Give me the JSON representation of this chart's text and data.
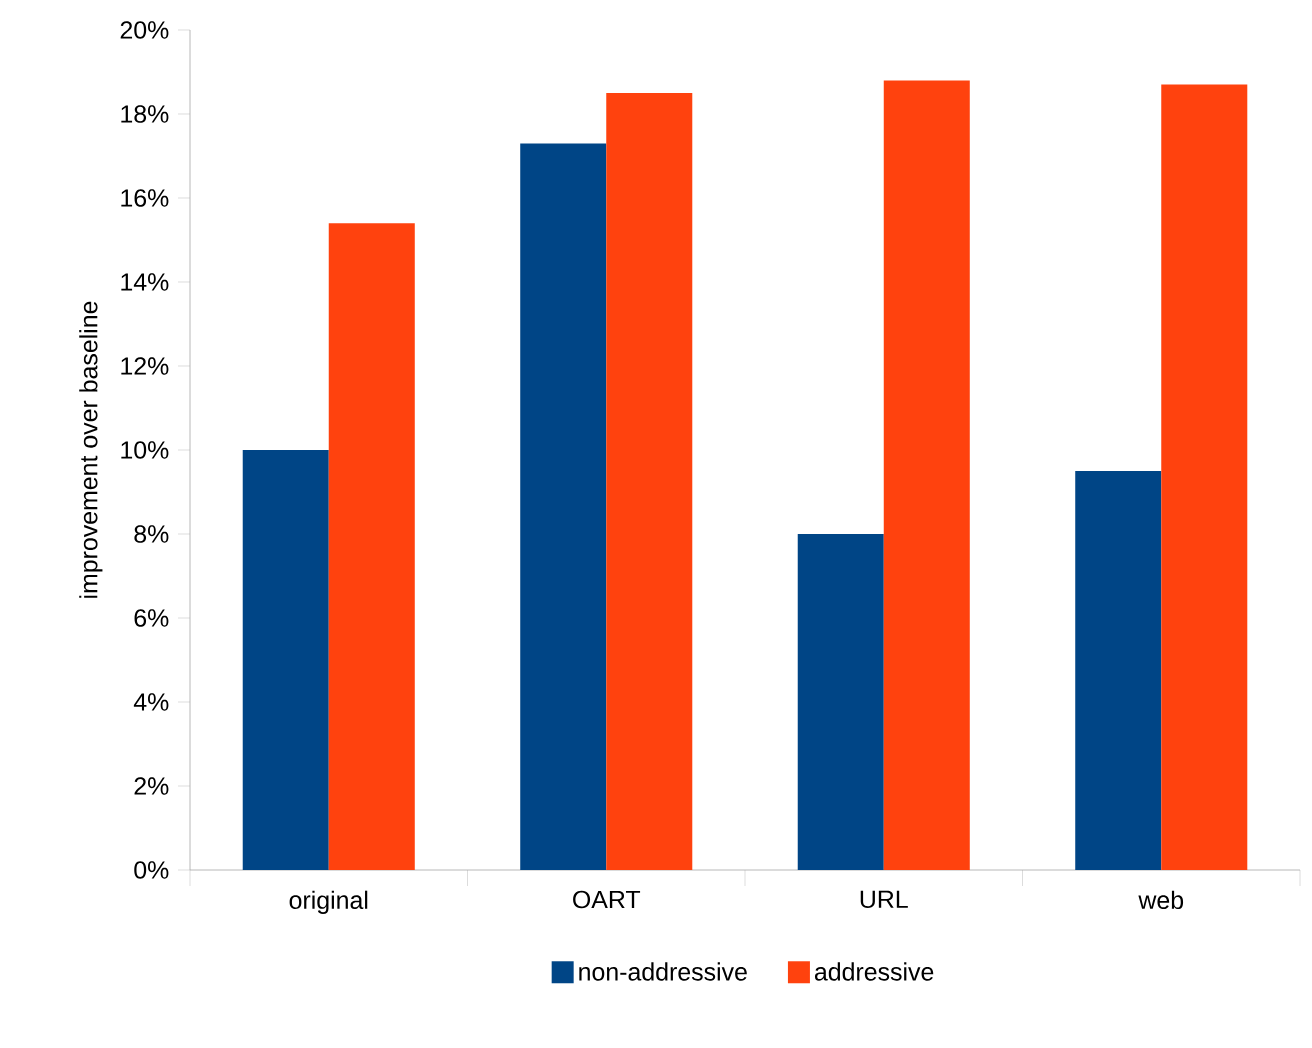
{
  "chart_data": {
    "type": "bar",
    "ylabel": "improvement over baseline",
    "categories": [
      "original",
      "OART",
      "URL",
      "web"
    ],
    "series": [
      {
        "name": "non-addressive",
        "color": "#004586",
        "values": [
          10.0,
          17.3,
          8.0,
          9.5
        ]
      },
      {
        "name": "addressive",
        "color": "#ff420e",
        "values": [
          15.4,
          18.5,
          18.8,
          18.7
        ]
      }
    ],
    "ylim": [
      0,
      20
    ],
    "yticks": [
      {
        "value": 0,
        "label": "0%"
      },
      {
        "value": 2,
        "label": "2%"
      },
      {
        "value": 4,
        "label": "4%"
      },
      {
        "value": 6,
        "label": "6%"
      },
      {
        "value": 8,
        "label": "8%"
      },
      {
        "value": 10,
        "label": "10%"
      },
      {
        "value": 12,
        "label": "12%"
      },
      {
        "value": 14,
        "label": "14%"
      },
      {
        "value": 16,
        "label": "16%"
      },
      {
        "value": 18,
        "label": "18%"
      },
      {
        "value": 20,
        "label": "20%"
      }
    ],
    "grid": false,
    "legend": "bottom"
  }
}
